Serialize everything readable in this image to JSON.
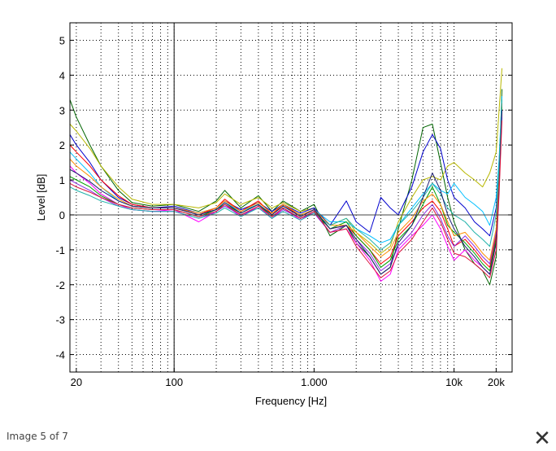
{
  "chart_data": {
    "type": "line",
    "title": "",
    "xlabel": "Frequency [Hz]",
    "ylabel": "Level [dB]",
    "xscale": "log",
    "xlim": [
      18,
      26000
    ],
    "ylim": [
      -4.5,
      5.5
    ],
    "grid": true,
    "x_ticks": [
      {
        "value": 20,
        "label": "20"
      },
      {
        "value": 100,
        "label": "100"
      },
      {
        "value": 1000,
        "label": "1.000"
      },
      {
        "value": 10000,
        "label": "10k"
      },
      {
        "value": 20000,
        "label": "20k"
      }
    ],
    "y_ticks": [
      {
        "value": 5,
        "label": "5"
      },
      {
        "value": 4,
        "label": "4"
      },
      {
        "value": 3,
        "label": "3"
      },
      {
        "value": 2,
        "label": "2"
      },
      {
        "value": 1,
        "label": "1"
      },
      {
        "value": 0,
        "label": "0"
      },
      {
        "value": -1,
        "label": "-1"
      },
      {
        "value": -2,
        "label": "-2"
      },
      {
        "value": -3,
        "label": "-3"
      },
      {
        "value": -4,
        "label": "-4"
      }
    ],
    "x": [
      18,
      20,
      25,
      30,
      40,
      50,
      70,
      100,
      150,
      200,
      230,
      300,
      400,
      500,
      600,
      800,
      1000,
      1300,
      1700,
      2000,
      2500,
      3000,
      3500,
      4000,
      5000,
      6000,
      7000,
      8000,
      9000,
      10000,
      12000,
      14000,
      16000,
      18000,
      20000,
      21000,
      22000
    ],
    "series": [
      {
        "color": "#006400",
        "values": [
          3.3,
          2.8,
          2.0,
          1.4,
          0.7,
          0.35,
          0.25,
          0.3,
          0.1,
          0.4,
          0.7,
          0.2,
          0.55,
          0.1,
          0.4,
          0.1,
          0.3,
          -0.6,
          -0.3,
          -0.8,
          -1.2,
          -1.7,
          -1.5,
          -0.4,
          1.0,
          2.5,
          2.6,
          1.5,
          0.5,
          -0.2,
          -1.0,
          -1.4,
          -1.6,
          -2.0,
          -1.2,
          1.0,
          3.6
        ]
      },
      {
        "color": "#b8b800",
        "values": [
          2.6,
          2.4,
          1.9,
          1.4,
          0.8,
          0.45,
          0.3,
          0.3,
          0.2,
          0.35,
          0.6,
          0.3,
          0.5,
          0.2,
          0.35,
          0.1,
          0.2,
          -0.3,
          -0.1,
          -0.5,
          -0.8,
          -1.1,
          -0.9,
          -0.2,
          0.5,
          1.0,
          1.1,
          1.0,
          1.4,
          1.5,
          1.2,
          1.0,
          0.8,
          1.2,
          1.8,
          3.0,
          4.2
        ]
      },
      {
        "color": "#0000cd",
        "values": [
          2.3,
          2.0,
          1.5,
          1.0,
          0.5,
          0.3,
          0.2,
          0.25,
          0.05,
          0.2,
          0.4,
          0.15,
          0.35,
          0.1,
          0.3,
          0.05,
          0.2,
          -0.3,
          0.4,
          -0.2,
          -0.5,
          0.5,
          0.2,
          0.0,
          0.8,
          1.8,
          2.3,
          1.9,
          1.0,
          0.5,
          0.2,
          -0.2,
          -0.4,
          -0.6,
          0.2,
          1.5,
          3.2
        ]
      },
      {
        "color": "#00bfff",
        "values": [
          1.8,
          1.6,
          1.2,
          0.8,
          0.4,
          0.25,
          0.2,
          0.2,
          0.0,
          0.15,
          0.35,
          0.1,
          0.3,
          0.0,
          0.25,
          0.0,
          0.15,
          -0.2,
          -0.2,
          -0.4,
          -0.6,
          -0.8,
          -0.7,
          -0.3,
          0.2,
          0.6,
          0.9,
          0.7,
          0.6,
          0.9,
          0.5,
          0.3,
          0.1,
          -0.3,
          0.5,
          1.6,
          3.4
        ]
      },
      {
        "color": "#ff00ff",
        "values": [
          1.4,
          1.2,
          0.9,
          0.6,
          0.3,
          0.15,
          0.1,
          0.15,
          -0.2,
          0.1,
          0.3,
          -0.05,
          0.25,
          -0.1,
          0.2,
          -0.15,
          0.1,
          -0.5,
          -0.4,
          -0.8,
          -1.3,
          -1.9,
          -1.7,
          -1.0,
          -0.6,
          -0.3,
          0.0,
          -0.4,
          -0.9,
          -1.3,
          -1.0,
          -1.3,
          -1.5,
          -1.7,
          -0.8,
          0.8,
          2.9
        ]
      },
      {
        "color": "#ff0000",
        "values": [
          2.0,
          1.8,
          1.4,
          1.0,
          0.55,
          0.3,
          0.2,
          0.2,
          0.0,
          0.2,
          0.45,
          0.1,
          0.4,
          0.0,
          0.3,
          -0.05,
          0.15,
          -0.4,
          -0.3,
          -0.6,
          -1.0,
          -1.4,
          -1.2,
          -0.6,
          -0.2,
          0.2,
          0.4,
          0.1,
          -0.4,
          -0.9,
          -0.7,
          -1.0,
          -1.3,
          -1.5,
          -0.6,
          1.0,
          3.0
        ]
      },
      {
        "color": "#00a000",
        "values": [
          1.1,
          1.0,
          0.8,
          0.55,
          0.3,
          0.2,
          0.15,
          0.15,
          -0.05,
          0.15,
          0.3,
          0.05,
          0.3,
          -0.05,
          0.2,
          -0.1,
          0.1,
          -0.4,
          -0.2,
          -0.6,
          -1.0,
          -1.5,
          -1.3,
          -0.7,
          -0.3,
          0.3,
          0.8,
          0.3,
          -0.3,
          -0.5,
          -0.8,
          -1.1,
          -1.4,
          -1.6,
          -0.7,
          0.9,
          3.1
        ]
      },
      {
        "color": "#8a2be2",
        "values": [
          1.0,
          0.9,
          0.7,
          0.5,
          0.25,
          0.15,
          0.1,
          0.1,
          -0.1,
          0.1,
          0.25,
          0.0,
          0.2,
          -0.1,
          0.15,
          -0.1,
          0.05,
          -0.5,
          -0.3,
          -0.7,
          -1.1,
          -1.6,
          -1.4,
          -0.9,
          -0.5,
          0.0,
          0.3,
          -0.1,
          -0.6,
          -0.9,
          -0.6,
          -0.9,
          -1.2,
          -1.4,
          -0.5,
          1.0,
          2.8
        ]
      },
      {
        "color": "#ff8c00",
        "values": [
          1.6,
          1.4,
          1.1,
          0.8,
          0.45,
          0.25,
          0.2,
          0.2,
          0.05,
          0.2,
          0.4,
          0.1,
          0.35,
          0.05,
          0.3,
          0.0,
          0.15,
          -0.3,
          -0.3,
          -0.5,
          -0.9,
          -1.2,
          -1.0,
          -0.5,
          -0.1,
          0.4,
          0.6,
          0.3,
          -0.2,
          -0.6,
          -0.5,
          -0.8,
          -1.1,
          -1.3,
          -0.4,
          1.2,
          3.2
        ]
      },
      {
        "color": "#20b2aa",
        "values": [
          0.8,
          0.7,
          0.55,
          0.4,
          0.25,
          0.15,
          0.1,
          0.1,
          -0.1,
          0.05,
          0.2,
          -0.05,
          0.2,
          -0.1,
          0.1,
          -0.15,
          0.05,
          -0.3,
          -0.1,
          -0.4,
          -0.7,
          -1.0,
          -0.8,
          -0.3,
          0.1,
          0.5,
          0.9,
          0.6,
          0.2,
          0.0,
          -0.2,
          -0.5,
          -0.7,
          -0.9,
          0.0,
          1.4,
          3.3
        ]
      },
      {
        "color": "#191970",
        "values": [
          1.3,
          1.2,
          0.95,
          0.7,
          0.4,
          0.25,
          0.2,
          0.2,
          0.0,
          0.15,
          0.35,
          0.05,
          0.3,
          0.0,
          0.25,
          -0.05,
          0.15,
          -0.4,
          -0.3,
          -0.7,
          -1.2,
          -1.7,
          -1.5,
          -0.8,
          -0.3,
          0.5,
          1.2,
          0.7,
          0.0,
          -0.4,
          -0.9,
          -1.2,
          -1.5,
          -1.7,
          -0.8,
          0.8,
          3.0
        ]
      },
      {
        "color": "#dc143c",
        "values": [
          0.9,
          0.8,
          0.65,
          0.5,
          0.3,
          0.2,
          0.15,
          0.15,
          -0.05,
          0.1,
          0.3,
          0.0,
          0.25,
          -0.05,
          0.2,
          -0.1,
          0.1,
          -0.5,
          -0.4,
          -0.9,
          -1.4,
          -1.8,
          -1.6,
          -1.1,
          -0.7,
          -0.2,
          0.2,
          -0.2,
          -0.7,
          -1.1,
          -1.2,
          -1.4,
          -1.6,
          -1.8,
          -1.0,
          0.6,
          2.7
        ]
      }
    ]
  },
  "reference_line_label": "",
  "caption": "Image 5 of 7",
  "close_glyph": "✕"
}
